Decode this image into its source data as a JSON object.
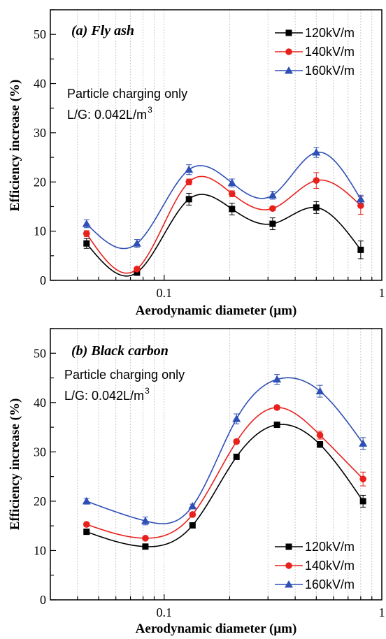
{
  "chart_data": [
    {
      "type": "scatter",
      "title": "(a) Fly ash",
      "xlabel": "Aerodynamic diameter (μm)",
      "ylabel": "Efficiency increase (%)",
      "xscale": "log",
      "xlim": [
        0.03,
        1
      ],
      "ylim": [
        0,
        55
      ],
      "x_tick_labels": [
        {
          "value": 0.1,
          "label": "0.1"
        },
        {
          "value": 1,
          "label": "1"
        }
      ],
      "y_ticks": [
        0,
        10,
        20,
        30,
        40,
        50
      ],
      "grid": "vertical dotted at decades and minor log ticks",
      "legend_position": "top-right",
      "annotation": {
        "line1": "Particle charging only",
        "line2_main": "L/G: 0.042L/m",
        "line2_sup": "3"
      },
      "x": [
        0.044,
        0.075,
        0.13,
        0.205,
        0.315,
        0.5,
        0.8
      ],
      "series": [
        {
          "name": "120kV/m",
          "marker": "square",
          "color": "#000000",
          "values": [
            7.5,
            1.6,
            16.5,
            14.5,
            11.5,
            14.8,
            6.2
          ],
          "errors": [
            1.0,
            0.6,
            1.2,
            1.2,
            1.2,
            1.2,
            1.8
          ]
        },
        {
          "name": "140kV/m",
          "marker": "circle",
          "color": "#e8211c",
          "values": [
            9.5,
            2.3,
            20.0,
            17.6,
            14.6,
            20.3,
            15.2
          ],
          "errors": [
            0.6,
            0.3,
            0.6,
            0.6,
            0.4,
            1.6,
            1.8
          ]
        },
        {
          "name": "160kV/m",
          "marker": "triangle",
          "color": "#2e4fb5",
          "values": [
            11.5,
            7.5,
            22.5,
            19.8,
            17.3,
            26.0,
            16.5
          ],
          "errors": [
            0.8,
            0.8,
            1.0,
            0.8,
            0.8,
            1.0,
            0.8
          ]
        }
      ]
    },
    {
      "type": "scatter",
      "title": "(b) Black carbon",
      "xlabel": "Aerodynamic diameter (μm)",
      "ylabel": "Efficiency increase (%)",
      "xscale": "log",
      "xlim": [
        0.03,
        1
      ],
      "ylim": [
        0,
        55
      ],
      "x_tick_labels": [
        {
          "value": 0.1,
          "label": "0.1"
        },
        {
          "value": 1,
          "label": "1"
        }
      ],
      "y_ticks": [
        0,
        10,
        20,
        30,
        40,
        50
      ],
      "grid": "vertical dotted at decades and minor log ticks",
      "legend_position": "bottom-right",
      "annotation": {
        "line1": "Particle charging only",
        "line2_main": "L/G: 0.042L/m",
        "line2_sup": "3"
      },
      "x": [
        0.044,
        0.082,
        0.135,
        0.215,
        0.33,
        0.52,
        0.82
      ],
      "series": [
        {
          "name": "120kV/m",
          "marker": "square",
          "color": "#000000",
          "values": [
            13.8,
            10.8,
            15.1,
            29.0,
            35.5,
            31.5,
            20.0
          ],
          "errors": [
            0.4,
            0.4,
            0.4,
            0.4,
            0.4,
            0.6,
            1.2
          ]
        },
        {
          "name": "140kV/m",
          "marker": "circle",
          "color": "#e8211c",
          "values": [
            15.3,
            12.5,
            17.3,
            32.1,
            39.0,
            33.4,
            24.5
          ],
          "errors": [
            0.4,
            0.4,
            0.4,
            0.4,
            0.4,
            0.8,
            1.4
          ]
        },
        {
          "name": "160kV/m",
          "marker": "triangle",
          "color": "#2e4fb5",
          "values": [
            20.0,
            16.0,
            19.0,
            36.7,
            44.7,
            42.3,
            31.7
          ],
          "errors": [
            0.6,
            0.8,
            0.4,
            1.0,
            1.0,
            1.2,
            1.2
          ]
        }
      ]
    }
  ]
}
